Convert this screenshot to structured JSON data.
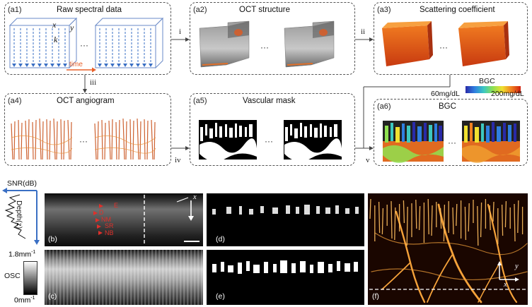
{
  "panels": {
    "a1": {
      "label": "(a1)",
      "title": "Raw spectral data",
      "axis_x": "x",
      "axis_y": "y",
      "axis_k": "k",
      "time": "time",
      "dots": "···"
    },
    "a2": {
      "label": "(a2)",
      "title": "OCT structure",
      "dots": "···"
    },
    "a3": {
      "label": "(a3)",
      "title": "Scattering coefficient",
      "dots": "···"
    },
    "a4": {
      "label": "(a4)",
      "title": "OCT angiogram",
      "dots": "···"
    },
    "a5": {
      "label": "(a5)",
      "title": "Vascular mask",
      "dots": "···"
    },
    "a6": {
      "label": "(a6)",
      "title": "BGC",
      "dots": "···"
    }
  },
  "steps": {
    "i": "i",
    "ii": "ii",
    "iii": "iii",
    "iv": "iv",
    "v": "v"
  },
  "bgc_legend": {
    "title": "BGC",
    "min": "60mg/dL",
    "max": "200mg/dL",
    "colors": [
      "#2a2aa8",
      "#2f7fe0",
      "#3cc8c0",
      "#8fe050",
      "#f0e030",
      "#f08020",
      "#d02010"
    ]
  },
  "snr": {
    "label": "SNR(dB)",
    "depth": "Depth(z)"
  },
  "osc": {
    "label": "OSC",
    "max": "1.8mm",
    "max_sup": "-1",
    "min": "0mm",
    "min_sup": "-1"
  },
  "layers": [
    "E",
    "D",
    "NM",
    "SR",
    "NB"
  ],
  "subpanels": {
    "b": "(b)",
    "c": "(c)",
    "d": "(d)",
    "e": "(e)",
    "f": "(f)"
  },
  "axes": {
    "x": "x",
    "y": "y"
  },
  "colors": {
    "red_annot": "#e0302a",
    "arrow_blue": "#3a6fc4",
    "time_orange": "#e8602a",
    "vessel": "#f5a23a"
  }
}
